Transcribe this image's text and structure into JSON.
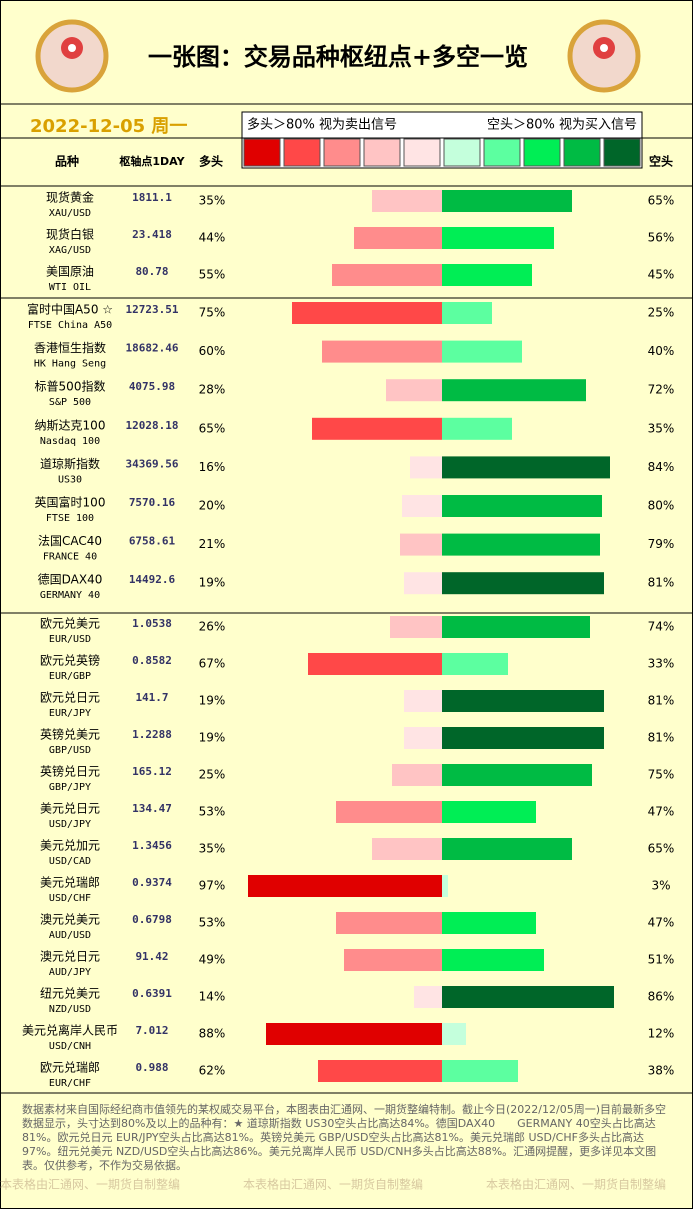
{
  "header": {
    "title": "一张图：交易品种枢纽点+多空一览",
    "date": "2022-12-05 周一",
    "long_legend": "多头＞80% 视为卖出信号",
    "short_legend": "空头＞80% 视为买入信号",
    "long_colors": [
      "#e00000",
      "#ff4848",
      "#ff8c8c",
      "#ffc4c4",
      "#ffe4e4"
    ],
    "short_colors": [
      "#c4ffdc",
      "#5cffa0",
      "#00ee55",
      "#00bb44",
      "#006629"
    ]
  },
  "columns": {
    "name": "品种",
    "pivot": "枢轴点1DAY",
    "long": "多头",
    "short": "空头"
  },
  "groups": [
    [
      {
        "name": "现货黄金",
        "code": "XAU/USD",
        "pivot": "1811.1",
        "long": 35,
        "long_label": "35%",
        "short": 65,
        "short_label": "65%"
      },
      {
        "name": "现货白银",
        "code": "XAG/USD",
        "pivot": "23.418",
        "long": 44,
        "long_label": "44%",
        "short": 56,
        "short_label": "56%"
      },
      {
        "name": "美国原油",
        "code": "WTI OIL",
        "pivot": "80.78",
        "long": 55,
        "long_label": "55%",
        "short": 45,
        "short_label": "45%"
      }
    ],
    [
      {
        "name": "富时中国A50 ☆",
        "code": "FTSE China A50",
        "pivot": "12723.51",
        "long": 75,
        "long_label": "75%",
        "short": 25,
        "short_label": "25%"
      },
      {
        "name": "香港恒生指数",
        "code": "HK Hang Seng",
        "pivot": "18682.46",
        "long": 60,
        "long_label": "60%",
        "short": 40,
        "short_label": "40%"
      },
      {
        "name": "标普500指数",
        "code": "S&P 500",
        "pivot": "4075.98",
        "long": 28,
        "long_label": "28%",
        "short": 72,
        "short_label": "72%"
      },
      {
        "name": "纳斯达克100",
        "code": "Nasdaq 100",
        "pivot": "12028.18",
        "long": 65,
        "long_label": "65%",
        "short": 35,
        "short_label": "35%"
      },
      {
        "name": "道琼斯指数",
        "code": "US30",
        "pivot": "34369.56",
        "long": 16,
        "long_label": "16%",
        "short": 84,
        "short_label": "84%"
      },
      {
        "name": "英国富时100",
        "code": "FTSE 100",
        "pivot": "7570.16",
        "long": 20,
        "long_label": "20%",
        "short": 80,
        "short_label": "80%"
      },
      {
        "name": "法国CAC40",
        "code": "FRANCE 40",
        "pivot": "6758.61",
        "long": 21,
        "long_label": "21%",
        "short": 79,
        "short_label": "79%"
      },
      {
        "name": "德国DAX40",
        "code": "GERMANY 40",
        "pivot": "14492.6",
        "long": 19,
        "long_label": "19%",
        "short": 81,
        "short_label": "81%"
      }
    ],
    [
      {
        "name": "欧元兑美元",
        "code": "EUR/USD",
        "pivot": "1.0538",
        "long": 26,
        "long_label": "26%",
        "short": 74,
        "short_label": "74%"
      },
      {
        "name": "欧元兑英镑",
        "code": "EUR/GBP",
        "pivot": "0.8582",
        "long": 67,
        "long_label": "67%",
        "short": 33,
        "short_label": "33%"
      },
      {
        "name": "欧元兑日元",
        "code": "EUR/JPY",
        "pivot": "141.7",
        "long": 19,
        "long_label": "19%",
        "short": 81,
        "short_label": "81%"
      },
      {
        "name": "英镑兑美元",
        "code": "GBP/USD",
        "pivot": "1.2288",
        "long": 19,
        "long_label": "19%",
        "short": 81,
        "short_label": "81%"
      },
      {
        "name": "英镑兑日元",
        "code": "GBP/JPY",
        "pivot": "165.12",
        "long": 25,
        "long_label": "25%",
        "short": 75,
        "short_label": "75%"
      },
      {
        "name": "美元兑日元",
        "code": "USD/JPY",
        "pivot": "134.47",
        "long": 53,
        "long_label": "53%",
        "short": 47,
        "short_label": "47%"
      },
      {
        "name": "美元兑加元",
        "code": "USD/CAD",
        "pivot": "1.3456",
        "long": 35,
        "long_label": "35%",
        "short": 65,
        "short_label": "65%"
      },
      {
        "name": "美元兑瑞郎",
        "code": "USD/CHF",
        "pivot": "0.9374",
        "long": 97,
        "long_label": "97%",
        "short": 3,
        "short_label": "3%"
      },
      {
        "name": "澳元兑美元",
        "code": "AUD/USD",
        "pivot": "0.6798",
        "long": 53,
        "long_label": "53%",
        "short": 47,
        "short_label": "47%"
      },
      {
        "name": "澳元兑日元",
        "code": "AUD/JPY",
        "pivot": "91.42",
        "long": 49,
        "long_label": "49%",
        "short": 51,
        "short_label": "51%"
      },
      {
        "name": "纽元兑美元",
        "code": "NZD/USD",
        "pivot": "0.6391",
        "long": 14,
        "long_label": "14%",
        "short": 86,
        "short_label": "86%"
      },
      {
        "name": "美元兑离岸人民币",
        "code": "USD/CNH",
        "pivot": "7.012",
        "long": 88,
        "long_label": "88%",
        "short": 12,
        "short_label": "12%"
      },
      {
        "name": "欧元兑瑞郎",
        "code": "EUR/CHF",
        "pivot": "0.988",
        "long": 62,
        "long_label": "62%",
        "short": 38,
        "short_label": "38%"
      }
    ]
  ],
  "footer": {
    "note": "数据素材来自国际经纪商市值领先的某权威交易平台，本图表由汇通网、一期货整编特制。截止今日(2022/12/05周一)目前最新多空数据显示，头寸达到80%及以上的品种有：★ 道琼斯指数 US30空头占比高达84%。德国DAX40　　GERMANY 40空头占比高达81%。欧元兑日元 EUR/JPY空头占比高达81%。英镑兑美元 GBP/USD空头占比高达81%。美元兑瑞郎 USD/CHF多头占比高达97%。纽元兑美元 NZD/USD空头占比高达86%。美元兑离岸人民币 USD/CNH多头占比高达88%。汇通网提醒，更多详见本文图表。仅供参考，不作为交易依据。",
    "watermarks": [
      "本表格由汇通网、一期货自制整编",
      "本表格由汇通网、一期货自制整编",
      "本表格由汇通网、一期货自制整编"
    ]
  }
}
